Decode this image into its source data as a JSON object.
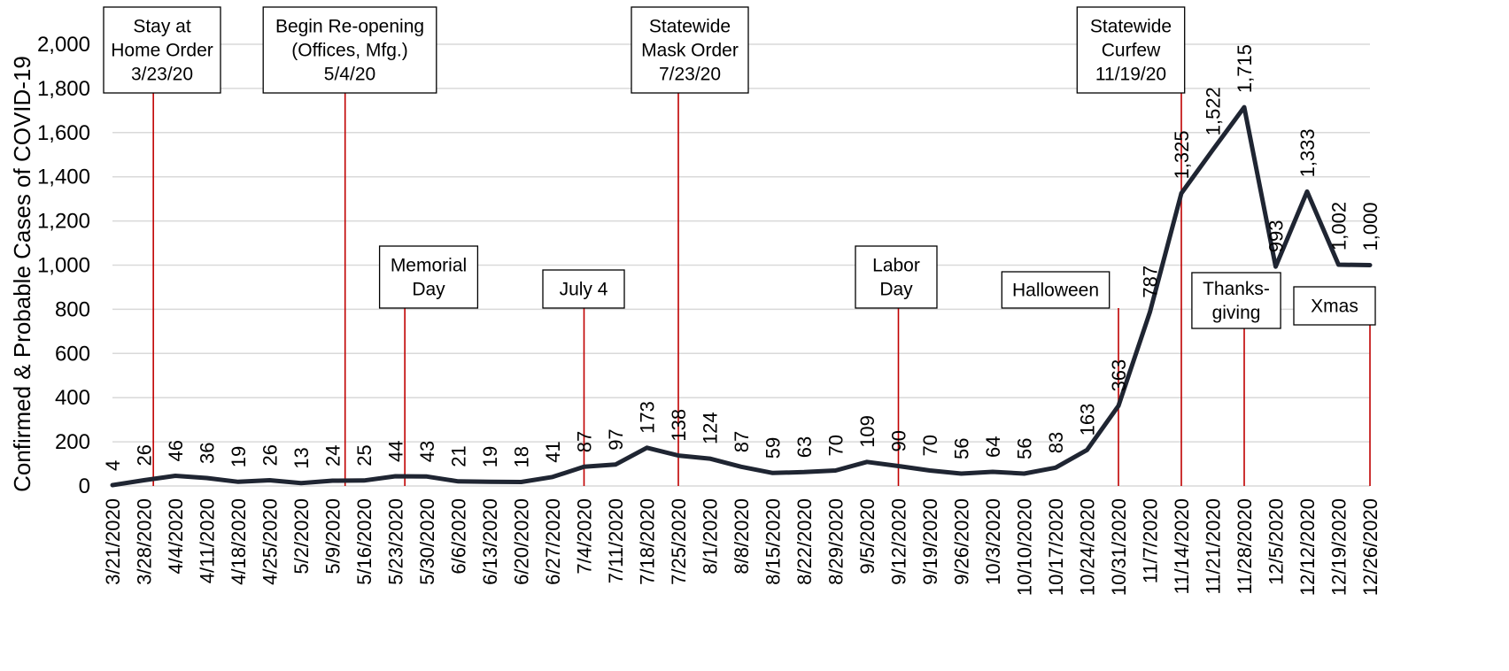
{
  "chart_data": {
    "type": "line",
    "title": "",
    "xlabel": "",
    "ylabel": "Confirmed & Probable Cases of COVID-19",
    "ylim": [
      0,
      2000
    ],
    "yticks": [
      0,
      200,
      400,
      600,
      800,
      1000,
      1200,
      1400,
      1600,
      1800,
      2000
    ],
    "ytick_labels": [
      "0",
      "200",
      "400",
      "600",
      "800",
      "1,000",
      "1,200",
      "1,400",
      "1,600",
      "1,800",
      "2,000"
    ],
    "grid": true,
    "legend": "none",
    "categories": [
      "3/21/2020",
      "3/28/2020",
      "4/4/2020",
      "4/11/2020",
      "4/18/2020",
      "4/25/2020",
      "5/2/2020",
      "5/9/2020",
      "5/16/2020",
      "5/23/2020",
      "5/30/2020",
      "6/6/2020",
      "6/13/2020",
      "6/20/2020",
      "6/27/2020",
      "7/4/2020",
      "7/11/2020",
      "7/18/2020",
      "7/25/2020",
      "8/1/2020",
      "8/8/2020",
      "8/15/2020",
      "8/22/2020",
      "8/29/2020",
      "9/5/2020",
      "9/12/2020",
      "9/19/2020",
      "9/26/2020",
      "10/3/2020",
      "10/10/2020",
      "10/17/2020",
      "10/24/2020",
      "10/31/2020",
      "11/7/2020",
      "11/14/2020",
      "11/21/2020",
      "11/28/2020",
      "12/5/2020",
      "12/12/2020",
      "12/19/2020",
      "12/26/2020"
    ],
    "series": [
      {
        "values": [
          4,
          26,
          46,
          36,
          19,
          26,
          13,
          24,
          25,
          44,
          43,
          21,
          19,
          18,
          41,
          87,
          97,
          173,
          138,
          124,
          87,
          59,
          63,
          70,
          109,
          90,
          70,
          56,
          64,
          56,
          83,
          163,
          363,
          787,
          1325,
          1522,
          1715,
          993,
          1333,
          1002,
          1000
        ],
        "labels": [
          "4",
          "26",
          "46",
          "36",
          "19",
          "26",
          "13",
          "24",
          "25",
          "44",
          "43",
          "21",
          "19",
          "18",
          "41",
          "87",
          "97",
          "173",
          "138",
          "124",
          "87",
          "59",
          "63",
          "70",
          "109",
          "90",
          "70",
          "56",
          "64",
          "56",
          "83",
          "163",
          "363",
          "787",
          "1,325",
          "1,522",
          "1,715",
          "993",
          "1,333",
          "1,002",
          "1,000"
        ],
        "color": "#1f2532"
      }
    ],
    "event_color": "#c00000",
    "events": [
      {
        "name": "stay-at-home",
        "lines": [
          "Stay at",
          "Home Order",
          "3/23/20"
        ],
        "x": 1.3
      },
      {
        "name": "reopening",
        "lines": [
          "Begin Re-opening",
          "(Offices, Mfg.)",
          "5/4/20"
        ],
        "x": 7.4
      },
      {
        "name": "memorial-day",
        "lines": [
          "Memorial",
          "Day"
        ],
        "x": 9.3
      },
      {
        "name": "july-4",
        "lines": [
          "July 4"
        ],
        "x": 15
      },
      {
        "name": "mask-order",
        "lines": [
          "Statewide",
          "Mask Order",
          "7/23/20"
        ],
        "x": 18
      },
      {
        "name": "labor-day",
        "lines": [
          "Labor",
          "Day"
        ],
        "x": 25
      },
      {
        "name": "halloween",
        "lines": [
          "Halloween"
        ],
        "x": 32
      },
      {
        "name": "curfew",
        "lines": [
          "Statewide",
          "Curfew",
          "11/19/20"
        ],
        "x": 34
      },
      {
        "name": "thanksgiving",
        "lines": [
          "Thanks-",
          "giving"
        ],
        "x": 36
      },
      {
        "name": "xmas",
        "lines": [
          "Xmas"
        ],
        "x": 40
      }
    ]
  }
}
